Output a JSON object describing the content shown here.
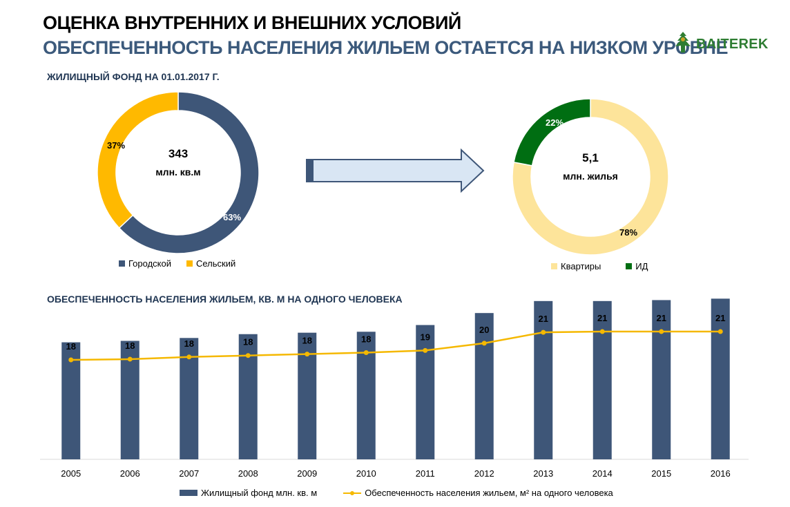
{
  "header": {
    "title": "ОЦЕНКА ВНУТРЕННИХ И ВНЕШНИХ УСЛОВИЙ",
    "subtitle": "ОБЕСПЕЧЕННОСТЬ НАСЕЛЕНИЯ ЖИЛЬЕМ ОСТАЕТСЯ НА НИЗКОМ УРОВНЕ",
    "logo_text": "BAITEREK"
  },
  "colors": {
    "city": "#3e5678",
    "rural": "#ffb900",
    "apartments": "#fde49a",
    "id": "#006e12",
    "bar": "#3e5678",
    "line": "#f5b800",
    "arrow_fill": "#d9e6f4",
    "arrow_stroke": "#3e5678"
  },
  "chart_data": [
    {
      "type": "pie",
      "title": "ЖИЛИЩНЫЙ ФОНД НА 01.01.2017 Г.",
      "center_value": "343",
      "center_unit": "млн. кв.м",
      "slices": [
        {
          "name": "Городской",
          "value": 63,
          "label": "63%"
        },
        {
          "name": "Сельский",
          "value": 37,
          "label": "37%"
        }
      ],
      "legend": [
        "Городской",
        "Сельский"
      ]
    },
    {
      "type": "pie",
      "center_value": "5,1",
      "center_unit": "млн. жилья",
      "slices": [
        {
          "name": "Квартиры",
          "value": 78,
          "label": "78%"
        },
        {
          "name": "ИД",
          "value": 22,
          "label": "22%"
        }
      ],
      "legend": [
        "Квартиры",
        "ИД"
      ]
    },
    {
      "type": "bar",
      "title": "ОБЕСПЕЧЕННОСТЬ НАСЕЛЕНИЯ ЖИЛЬЕМ, КВ. М НА ОДНОГО ЧЕЛОВЕКА",
      "categories": [
        "2005",
        "2006",
        "2007",
        "2008",
        "2009",
        "2010",
        "2011",
        "2012",
        "2013",
        "2014",
        "2015",
        "2016"
      ],
      "series": [
        {
          "name": "Жилищный фонд  млн. кв. м",
          "type": "bar",
          "values": [
            264,
            267,
            273,
            281,
            284,
            286,
            300,
            325,
            350,
            350,
            352,
            355
          ]
        },
        {
          "name": "Обеспеченность населения жильем, м² на одного человека",
          "type": "line",
          "values": [
            17.5,
            17.6,
            17.9,
            18.1,
            18.3,
            18.5,
            18.8,
            19.8,
            21.3,
            21.4,
            21.4,
            21.4
          ],
          "labels": [
            "18",
            "18",
            "18",
            "18",
            "18",
            "18",
            "19",
            "20",
            "21",
            "21",
            "21",
            "21"
          ]
        }
      ]
    }
  ]
}
